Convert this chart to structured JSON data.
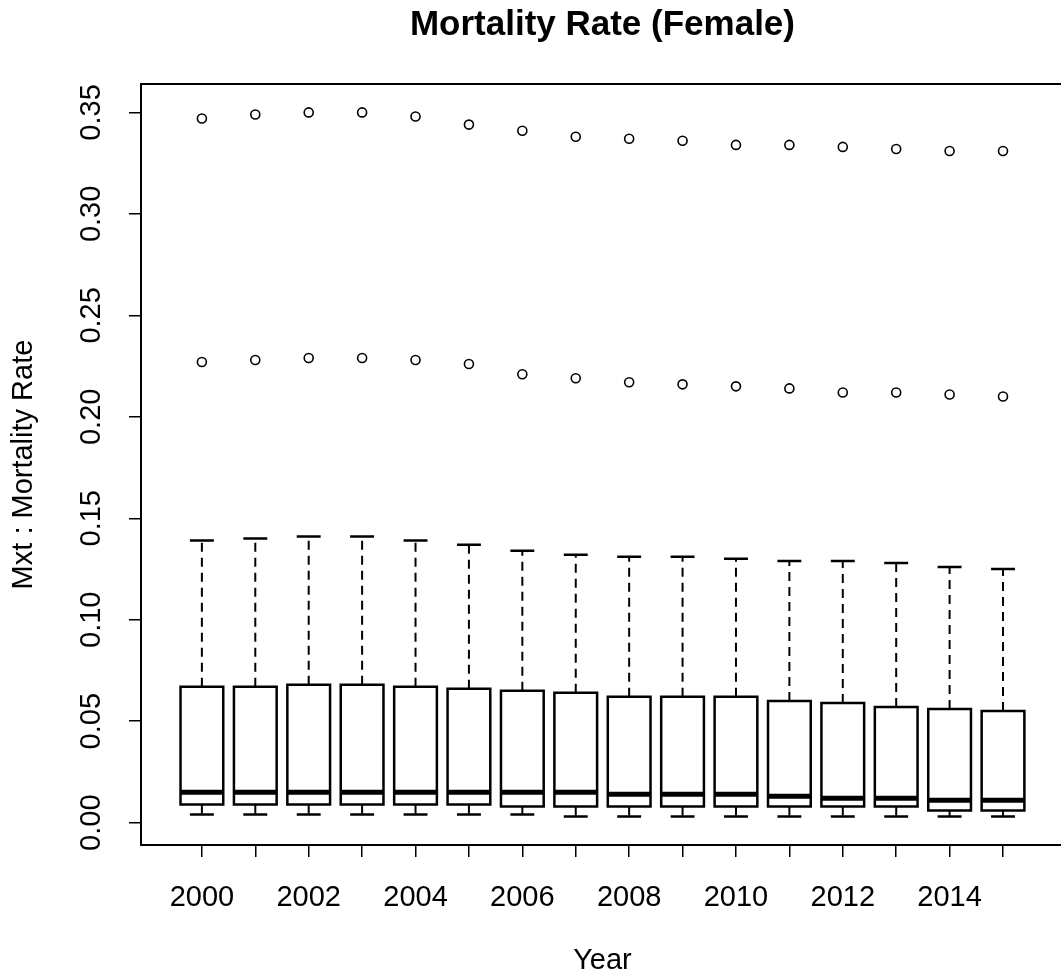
{
  "chart_data": {
    "type": "box",
    "title": "Mortality Rate (Female)",
    "xlabel": "Year",
    "ylabel": "Mxt : Mortality Rate",
    "color": "#000000",
    "categories": [
      "2000",
      null,
      "2002",
      null,
      "2004",
      null,
      "2006",
      null,
      "2008",
      null,
      "2010",
      null,
      "2012",
      null,
      "2014",
      null
    ],
    "boxes": [
      {
        "low": 0.004,
        "q1": 0.009,
        "median": 0.015,
        "q3": 0.067,
        "high": 0.139,
        "outliers": [
          0.227,
          0.347
        ]
      },
      {
        "low": 0.004,
        "q1": 0.009,
        "median": 0.015,
        "q3": 0.067,
        "high": 0.14,
        "outliers": [
          0.228,
          0.349
        ]
      },
      {
        "low": 0.004,
        "q1": 0.009,
        "median": 0.015,
        "q3": 0.068,
        "high": 0.141,
        "outliers": [
          0.229,
          0.35
        ]
      },
      {
        "low": 0.004,
        "q1": 0.009,
        "median": 0.015,
        "q3": 0.068,
        "high": 0.141,
        "outliers": [
          0.229,
          0.35
        ]
      },
      {
        "low": 0.004,
        "q1": 0.009,
        "median": 0.015,
        "q3": 0.067,
        "high": 0.139,
        "outliers": [
          0.228,
          0.348
        ]
      },
      {
        "low": 0.004,
        "q1": 0.009,
        "median": 0.015,
        "q3": 0.066,
        "high": 0.137,
        "outliers": [
          0.226,
          0.344
        ]
      },
      {
        "low": 0.004,
        "q1": 0.008,
        "median": 0.015,
        "q3": 0.065,
        "high": 0.134,
        "outliers": [
          0.221,
          0.341
        ]
      },
      {
        "low": 0.003,
        "q1": 0.008,
        "median": 0.015,
        "q3": 0.064,
        "high": 0.132,
        "outliers": [
          0.219,
          0.338
        ]
      },
      {
        "low": 0.003,
        "q1": 0.008,
        "median": 0.014,
        "q3": 0.062,
        "high": 0.131,
        "outliers": [
          0.217,
          0.337
        ]
      },
      {
        "low": 0.003,
        "q1": 0.008,
        "median": 0.014,
        "q3": 0.062,
        "high": 0.131,
        "outliers": [
          0.216,
          0.336
        ]
      },
      {
        "low": 0.003,
        "q1": 0.008,
        "median": 0.014,
        "q3": 0.062,
        "high": 0.13,
        "outliers": [
          0.215,
          0.334
        ]
      },
      {
        "low": 0.003,
        "q1": 0.008,
        "median": 0.013,
        "q3": 0.06,
        "high": 0.129,
        "outliers": [
          0.214,
          0.334
        ]
      },
      {
        "low": 0.003,
        "q1": 0.008,
        "median": 0.012,
        "q3": 0.059,
        "high": 0.129,
        "outliers": [
          0.212,
          0.333
        ]
      },
      {
        "low": 0.003,
        "q1": 0.008,
        "median": 0.012,
        "q3": 0.057,
        "high": 0.128,
        "outliers": [
          0.212,
          0.332
        ]
      },
      {
        "low": 0.003,
        "q1": 0.006,
        "median": 0.011,
        "q3": 0.056,
        "high": 0.126,
        "outliers": [
          0.211,
          0.331
        ]
      },
      {
        "low": 0.003,
        "q1": 0.006,
        "median": 0.011,
        "q3": 0.055,
        "high": 0.125,
        "outliers": [
          0.21,
          0.331
        ]
      }
    ],
    "ylim": [
      -0.011,
      0.364
    ],
    "yticks": [
      {
        "value": 0,
        "label": "0.00"
      },
      0.05,
      {
        "value": 0.1,
        "label": "0.10"
      },
      0.15,
      {
        "value": 0.2,
        "label": "0.20"
      },
      0.25,
      {
        "value": 0.3,
        "label": "0.30"
      },
      0.35
    ]
  }
}
